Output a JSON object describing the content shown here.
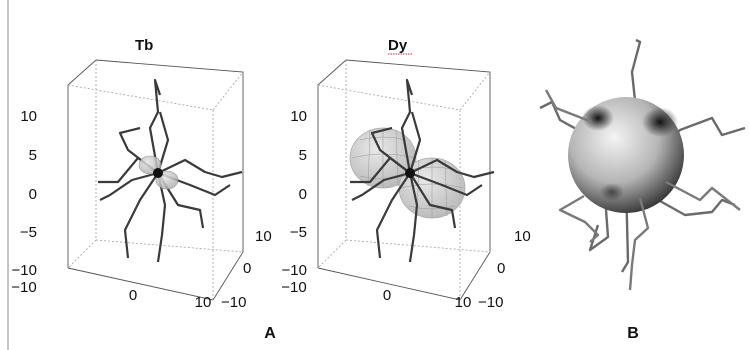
{
  "figure": {
    "panel_a": {
      "label": "A",
      "plots": [
        {
          "title": "Tb",
          "z_ticks": [
            "10",
            "5",
            "0",
            "−5",
            "−10"
          ],
          "x_ticks": [
            "−10",
            "0",
            "10"
          ],
          "y_ticks": [
            "−10",
            "0",
            "10"
          ]
        },
        {
          "title": "Dy",
          "z_ticks": [
            "10",
            "5",
            "0",
            "−5",
            "−10"
          ],
          "x_ticks": [
            "−10",
            "0",
            "10"
          ],
          "y_ticks": [
            "−10",
            "0",
            "10"
          ]
        }
      ]
    },
    "panel_b": {
      "label": "B"
    }
  },
  "colors": {
    "bond": "#3a3a3a",
    "axis": "#555555",
    "grid": "#aaaaaa",
    "lobe": "#c8c8c8",
    "dy_title_underline": "#cc3333"
  }
}
